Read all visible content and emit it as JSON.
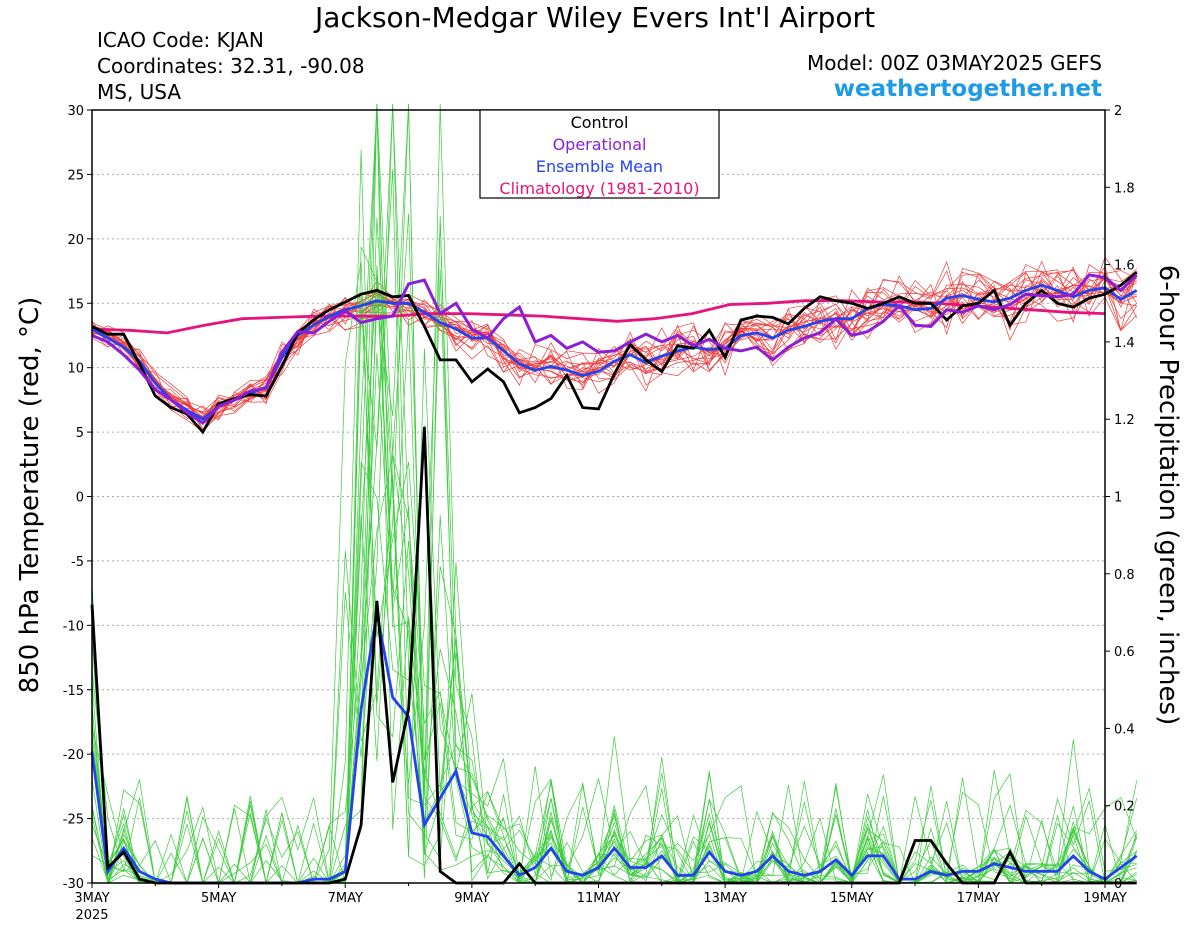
{
  "header": {
    "title": "Jackson-Medgar Wiley Evers Int'l Airport",
    "icao": "ICAO Code: KJAN",
    "coords": "Coordinates: 32.31, -90.08",
    "region": "MS, USA",
    "model": "Model: 00Z 03MAY2025 GEFS",
    "site": "weathertogether.net"
  },
  "chart_data": {
    "type": "line",
    "xlim": [
      0,
      16
    ],
    "x_ticks": [
      {
        "x": 0,
        "label": "3MAY",
        "sub": "2025"
      },
      {
        "x": 2,
        "label": "5MAY"
      },
      {
        "x": 4,
        "label": "7MAY"
      },
      {
        "x": 6,
        "label": "9MAY"
      },
      {
        "x": 8,
        "label": "11MAY"
      },
      {
        "x": 10,
        "label": "13MAY"
      },
      {
        "x": 12,
        "label": "15MAY"
      },
      {
        "x": 14,
        "label": "17MAY"
      },
      {
        "x": 16,
        "label": "19MAY"
      }
    ],
    "y_left": {
      "label": "850 hPa Temperature (red, °C)",
      "lim": [
        -30,
        30
      ],
      "ticks": [
        30,
        25,
        20,
        15,
        10,
        5,
        0,
        -5,
        -10,
        -15,
        -20,
        -25,
        -30
      ]
    },
    "y_right": {
      "label": "6-hour Precipitation (green, inches)",
      "lim": [
        0,
        2
      ],
      "ticks": [
        "2",
        "1.8",
        "1.6",
        "1.4",
        "1.2",
        "1",
        "0.8",
        "0.6",
        "0.4",
        "0.2",
        "0"
      ]
    },
    "legend": {
      "placement": "top-center",
      "entries": [
        {
          "label": "Control",
          "color": "#000000"
        },
        {
          "label": "Operational",
          "color": "#8a1fd6"
        },
        {
          "label": "Ensemble Mean",
          "color": "#2244ee"
        },
        {
          "label": "Climatology (1981-2010)",
          "color": "#e6127d"
        }
      ]
    },
    "colors": {
      "member_temp": "#f03c3c",
      "member_precip": "#3ccc3c",
      "control": "#000000",
      "operational": "#8a1fd6",
      "mean": "#2244ee",
      "climo": "#e6127d",
      "grid": "#aaaaaa"
    },
    "grid": true,
    "series": {
      "control_temp": [
        13.2,
        12.6,
        12.6,
        10.3,
        7.8,
        6.9,
        6.4,
        5.0,
        7.2,
        7.6,
        7.9,
        7.8,
        10.1,
        12.7,
        13.7,
        14.5,
        15.1,
        15.7,
        16.0,
        15.5,
        15.6,
        13.2,
        10.6,
        10.6,
        8.9,
        9.9,
        8.9,
        6.5,
        6.9,
        7.6,
        9.4,
        6.9,
        6.8,
        9.5,
        11.8,
        10.6,
        9.7,
        11.7,
        11.5,
        12.9,
        10.8,
        13.7,
        14.0,
        13.9,
        13.4,
        14.6,
        15.5,
        15.2,
        15.0,
        14.6,
        15.0,
        15.5,
        15.0,
        15.0,
        13.7,
        14.8,
        15.0,
        16.0,
        13.3,
        15.0,
        16.0,
        15.0,
        14.7,
        15.4,
        15.7,
        16.4,
        17.4
      ],
      "operational_temp": [
        12.5,
        12.0,
        11.0,
        9.8,
        8.3,
        7.5,
        6.5,
        5.7,
        7.0,
        7.5,
        8.2,
        8.4,
        11.2,
        12.8,
        12.7,
        13.6,
        14.4,
        13.5,
        13.8,
        14.0,
        16.5,
        16.8,
        14.2,
        15.0,
        13.0,
        12.3,
        13.8,
        14.7,
        12.0,
        12.5,
        11.5,
        12.0,
        11.2,
        11.3,
        12.0,
        12.6,
        12.0,
        12.5,
        11.7,
        12.2,
        11.5,
        11.3,
        11.6,
        10.6,
        11.6,
        12.3,
        12.7,
        13.8,
        12.5,
        12.8,
        13.6,
        14.8,
        13.3,
        13.2,
        14.5,
        14.3,
        14.8,
        14.5,
        14.9,
        15.7,
        15.6,
        15.5,
        15.7,
        17.2,
        17.0,
        16.0,
        17.2
      ],
      "mean_temp": [
        13.0,
        12.3,
        11.6,
        10.5,
        8.8,
        7.5,
        6.7,
        6.0,
        7.0,
        7.5,
        8.0,
        8.5,
        10.8,
        12.5,
        13.3,
        14.0,
        14.5,
        14.8,
        15.2,
        15.0,
        15.0,
        14.3,
        13.5,
        13.0,
        12.3,
        12.3,
        11.3,
        10.3,
        9.8,
        10.1,
        9.8,
        9.4,
        9.7,
        10.5,
        11.0,
        10.4,
        10.9,
        11.3,
        11.6,
        11.4,
        11.5,
        12.5,
        12.7,
        12.3,
        12.9,
        13.2,
        13.6,
        13.8,
        13.8,
        14.6,
        14.9,
        14.8,
        14.5,
        14.6,
        15.4,
        15.6,
        15.3,
        15.1,
        15.4,
        16.0,
        16.4,
        16.0,
        15.5,
        16.0,
        16.2,
        15.3,
        16.0
      ],
      "climo_temp": [
        13.0,
        12.9,
        12.7,
        13.3,
        13.8,
        13.9,
        14.0,
        14.0,
        14.0,
        14.2,
        14.2,
        14.1,
        14.0,
        13.8,
        13.6,
        13.8,
        14.2,
        14.9,
        15.0,
        15.2,
        15.2,
        15.1,
        15.1,
        14.9,
        14.7,
        14.5,
        14.3,
        14.2
      ],
      "control_precip": [
        0.72,
        0.04,
        0.08,
        0.01,
        0,
        0,
        0,
        0,
        0,
        0,
        0,
        0,
        0,
        0,
        0,
        0,
        0.01,
        0.15,
        0.73,
        0.26,
        0.45,
        1.18,
        0.03,
        0,
        0,
        0,
        0,
        0.05,
        0,
        0,
        0,
        0,
        0,
        0,
        0,
        0,
        0,
        0,
        0,
        0,
        0,
        0,
        0,
        0,
        0,
        0,
        0,
        0,
        0,
        0,
        0,
        0,
        0.11,
        0.11,
        0.05,
        0,
        0,
        0,
        0.08,
        0,
        0,
        0,
        0,
        0,
        0,
        0,
        0
      ],
      "mean_precip": [
        0.34,
        0.03,
        0.09,
        0.03,
        0.01,
        0,
        0,
        0,
        0,
        0,
        0,
        0,
        0,
        0,
        0.01,
        0.01,
        0.03,
        0.45,
        0.7,
        0.48,
        0.43,
        0.15,
        0.22,
        0.29,
        0.13,
        0.12,
        0.07,
        0.02,
        0.04,
        0.09,
        0.03,
        0.02,
        0.04,
        0.09,
        0.04,
        0.04,
        0.07,
        0.02,
        0.02,
        0.08,
        0.03,
        0.02,
        0.03,
        0.07,
        0.03,
        0.02,
        0.03,
        0.06,
        0.02,
        0.07,
        0.07,
        0.01,
        0.01,
        0.03,
        0.02,
        0.03,
        0.03,
        0.05,
        0.04,
        0.03,
        0.03,
        0.03,
        0.07,
        0.03,
        0.01,
        0.04,
        0.07
      ]
    }
  }
}
